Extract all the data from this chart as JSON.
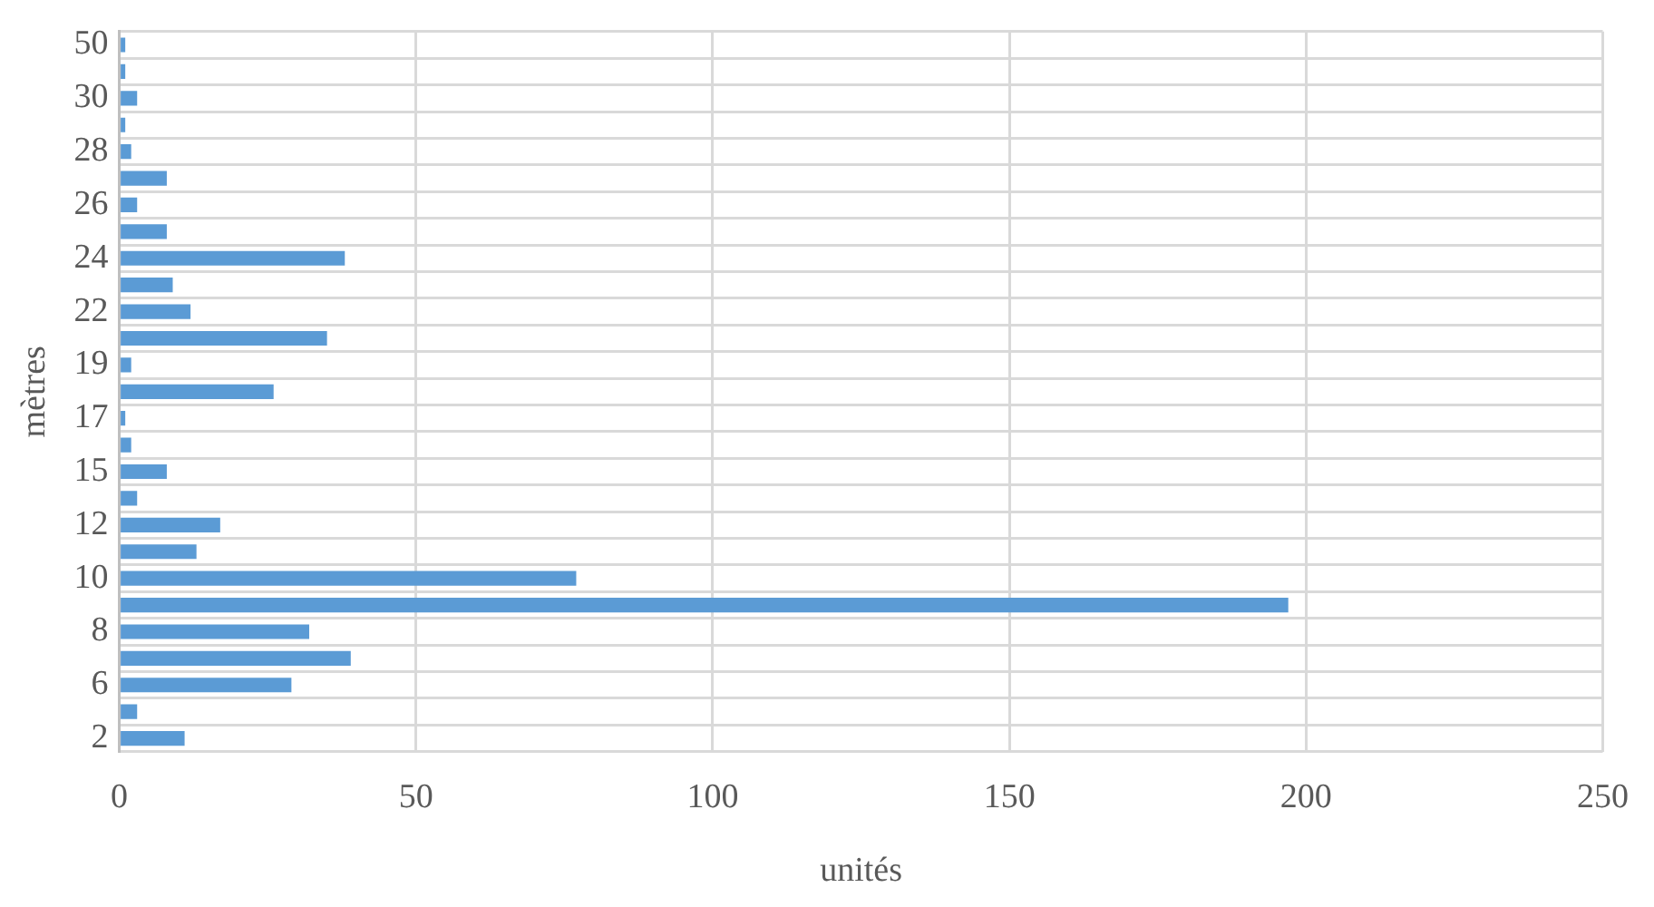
{
  "chart_data": {
    "type": "bar",
    "orientation": "horizontal",
    "xlabel": "unités",
    "ylabel": "mètres",
    "categories": [
      "50",
      null,
      "30",
      null,
      "28",
      null,
      "26",
      null,
      "24",
      null,
      "22",
      null,
      "19",
      null,
      "17",
      null,
      "15",
      null,
      "12",
      null,
      "10",
      null,
      "8",
      null,
      "6",
      null,
      "2"
    ],
    "values": [
      1,
      1,
      3,
      1,
      2,
      8,
      3,
      8,
      38,
      9,
      12,
      35,
      2,
      26,
      1,
      2,
      8,
      3,
      17,
      13,
      77,
      197,
      32,
      39,
      29,
      3,
      11
    ],
    "color": "#5b9bd5",
    "xlim": [
      0,
      250
    ],
    "xticks": [
      0,
      50,
      100,
      150,
      200,
      250
    ],
    "grid": true
  }
}
